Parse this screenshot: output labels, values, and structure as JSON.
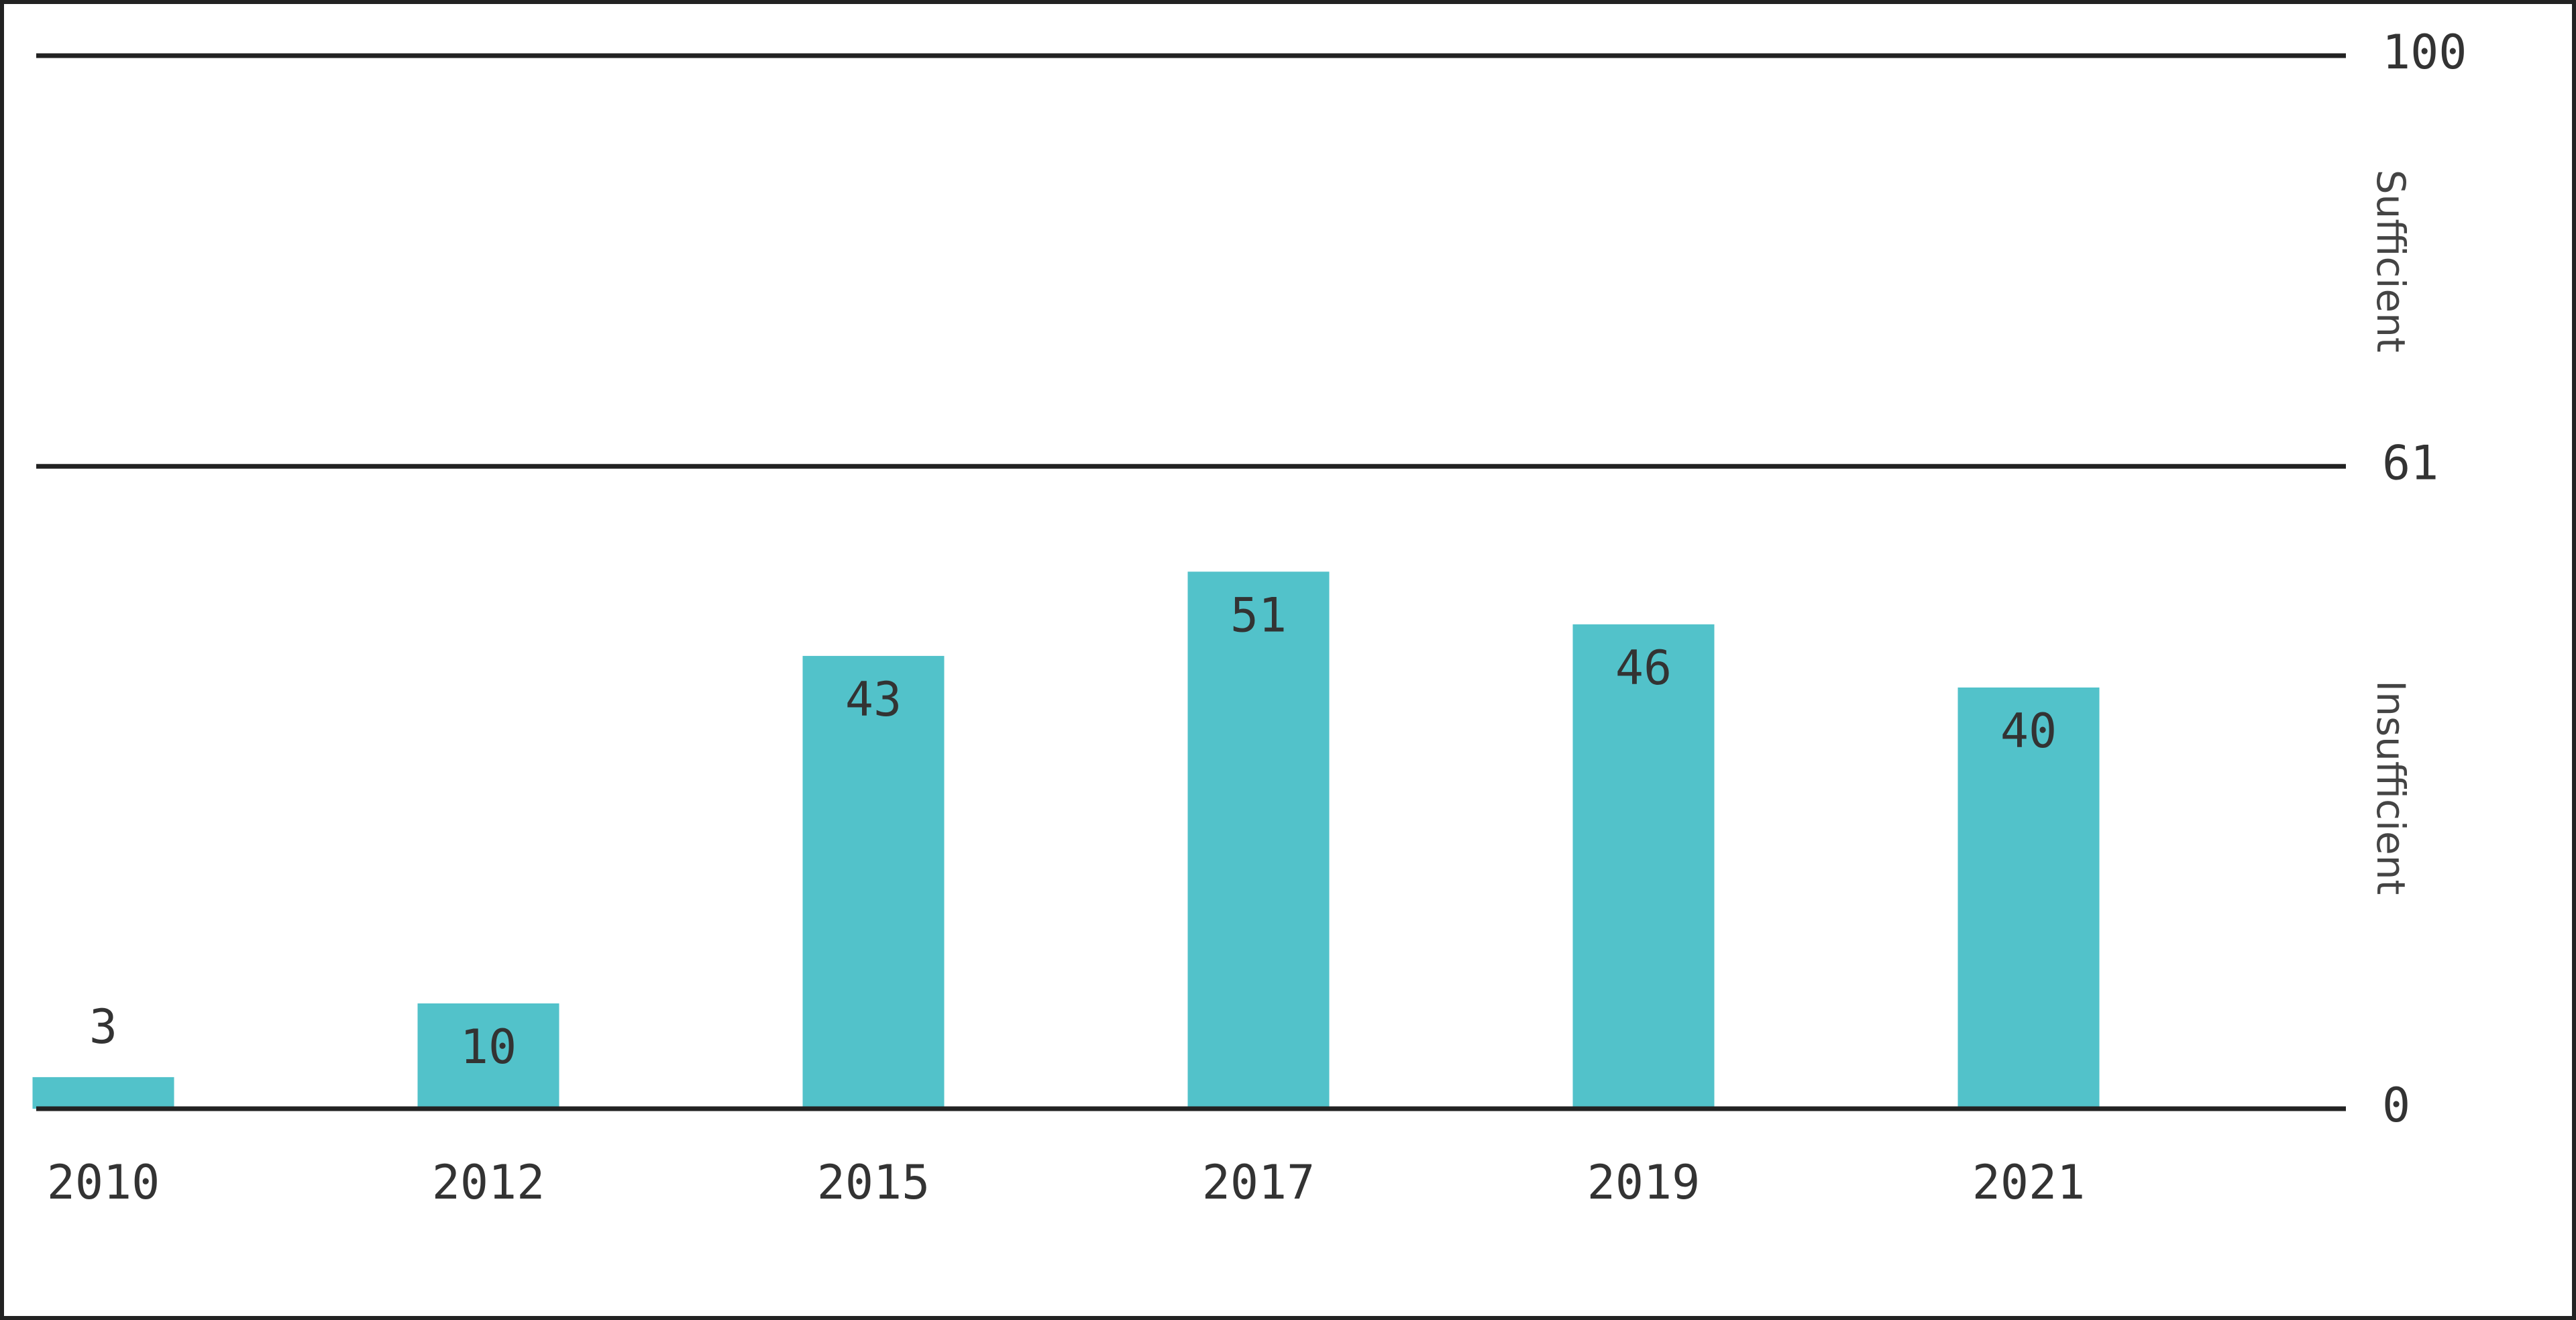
{
  "chart_data": {
    "type": "bar",
    "categories": [
      "2010",
      "2012",
      "2015",
      "2017",
      "2019",
      "2021"
    ],
    "values": [
      3,
      10,
      43,
      51,
      46,
      40
    ],
    "color": "#52c2ca",
    "ylim": [
      0,
      100
    ],
    "yticks": [
      0,
      61,
      100
    ],
    "grid": true,
    "zones": [
      {
        "label": "Sufficient",
        "from": 61,
        "to": 100
      },
      {
        "label": "Insufficient",
        "from": 0,
        "to": 61
      }
    ]
  }
}
